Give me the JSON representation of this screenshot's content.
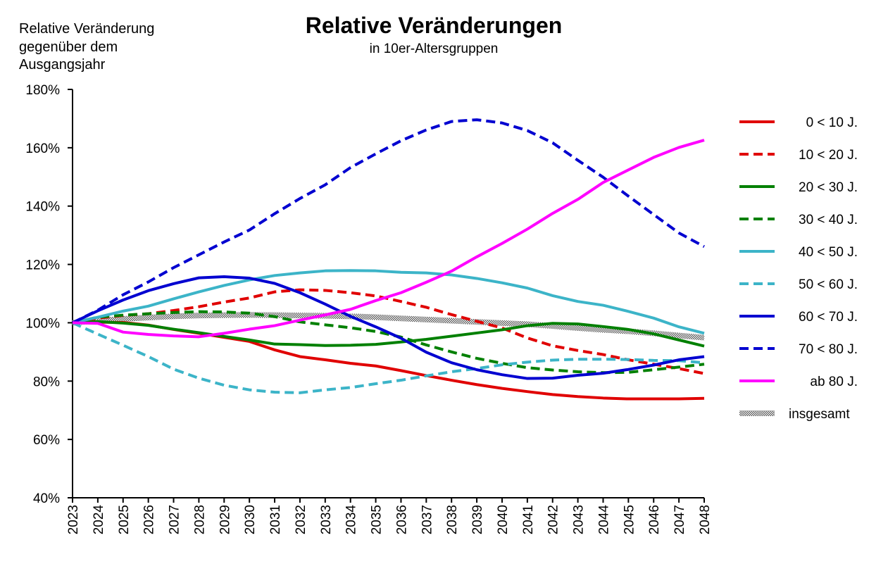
{
  "chart_data": {
    "type": "line",
    "title": "Relative Veränderungen",
    "subtitle": "in 10er-Altersgruppen",
    "ylabel_lines": [
      "Relative Veränderung",
      "gegenüber dem",
      "Ausgangsjahr"
    ],
    "xlabel": "",
    "ylim": [
      40,
      180
    ],
    "y_ticks": [
      40,
      60,
      80,
      100,
      120,
      140,
      160,
      180
    ],
    "y_tick_labels": [
      "40%",
      "60%",
      "80%",
      "100%",
      "120%",
      "140%",
      "160%",
      "180%"
    ],
    "x": [
      2023,
      2024,
      2025,
      2026,
      2027,
      2028,
      2029,
      2030,
      2031,
      2032,
      2033,
      2034,
      2035,
      2036,
      2037,
      2038,
      2039,
      2040,
      2041,
      2042,
      2043,
      2044,
      2045,
      2046,
      2047,
      2048
    ],
    "x_tick_labels": [
      "2023",
      "2024",
      "2025",
      "2026",
      "2027",
      "2028",
      "2029",
      "2030",
      "2031",
      "2032",
      "2033",
      "2034",
      "2035",
      "2036",
      "2037",
      "2038",
      "2039",
      "2040",
      "2041",
      "2042",
      "2043",
      "2044",
      "2045",
      "2046",
      "2047",
      "2048"
    ],
    "grid": false,
    "legend_position": "right",
    "series": [
      {
        "name": "0 <  10  J.",
        "color": "#e00000",
        "dash": false,
        "values": [
          100,
          100.2,
          100.1,
          99.2,
          97.7,
          96.4,
          95,
          93.6,
          90.7,
          88.4,
          87.3,
          86.1,
          85.2,
          83.6,
          81.9,
          80.3,
          78.8,
          77.5,
          76.4,
          75.4,
          74.7,
          74.2,
          73.9,
          73.9,
          73.9,
          74.1
        ]
      },
      {
        "name": "10 <  20  J.",
        "color": "#e00000",
        "dash": true,
        "values": [
          100,
          101.6,
          102.5,
          103.1,
          104.2,
          105.5,
          107.1,
          108.5,
          110.6,
          111.3,
          111.1,
          110.3,
          109.2,
          107.3,
          105.3,
          102.8,
          100.5,
          98.2,
          94.8,
          92.1,
          90.5,
          89.1,
          87.3,
          85.8,
          84.3,
          82.6
        ]
      },
      {
        "name": "20 <  30  J.",
        "color": "#008000",
        "dash": false,
        "values": [
          100,
          100.4,
          99.9,
          99.1,
          97.8,
          96.6,
          95.3,
          94.1,
          92.7,
          92.5,
          92.2,
          92.3,
          92.6,
          93.4,
          94.3,
          95.4,
          96.5,
          97.6,
          99,
          99.8,
          99.6,
          98.7,
          97.7,
          96.2,
          94.1,
          92
        ]
      },
      {
        "name": "30 <  40  J.",
        "color": "#008000",
        "dash": true,
        "values": [
          100,
          101.9,
          102.6,
          103.1,
          103.5,
          103.8,
          103.7,
          103.3,
          102.1,
          100.3,
          99.3,
          98.3,
          97,
          95.1,
          92.4,
          90,
          87.8,
          86.1,
          84.6,
          83.8,
          83.2,
          82.9,
          83,
          83.9,
          84.8,
          85.8
        ]
      },
      {
        "name": "40 <  50  J.",
        "color": "#3cb4c8",
        "dash": false,
        "values": [
          100,
          101.9,
          104,
          105.7,
          108.2,
          110.6,
          112.8,
          114.7,
          116.2,
          117.1,
          117.8,
          117.9,
          117.8,
          117.3,
          117.1,
          116.4,
          115.2,
          113.7,
          111.9,
          109.3,
          107.3,
          106,
          103.9,
          101.6,
          98.6,
          96.4
        ]
      },
      {
        "name": "50 <  60  J.",
        "color": "#3cb4c8",
        "dash": true,
        "values": [
          100,
          96.1,
          92.3,
          88.4,
          84.1,
          81,
          78.6,
          77,
          76.2,
          76,
          77,
          77.8,
          79.1,
          80.3,
          81.8,
          83.2,
          84.3,
          85.6,
          86.5,
          87.2,
          87.5,
          87.5,
          87.4,
          87.1,
          87,
          86.3
        ]
      },
      {
        "name": "60 <  70  J.",
        "color": "#0000d0",
        "dash": false,
        "values": [
          100,
          104.1,
          107.8,
          111,
          113.4,
          115.4,
          115.8,
          115.3,
          113.5,
          110.3,
          106.4,
          102.2,
          98.6,
          94.7,
          89.9,
          86.3,
          83.9,
          82.2,
          80.9,
          81,
          82,
          82.7,
          84,
          85.5,
          87.3,
          88.4
        ]
      },
      {
        "name": "70 <  80  J.",
        "color": "#0000d0",
        "dash": true,
        "values": [
          100,
          104.3,
          109.6,
          114,
          118.9,
          123.3,
          127.7,
          131.8,
          137.4,
          142.6,
          147.3,
          153.2,
          157.9,
          162.4,
          166.1,
          169,
          169.6,
          168.5,
          165.9,
          161.7,
          155.7,
          149.9,
          143.4,
          137.1,
          130.8,
          126.1
        ]
      },
      {
        "name": "ab 80  J.",
        "color": "#ff00ff",
        "dash": false,
        "values": [
          100,
          99.8,
          96.8,
          96,
          95.5,
          95.2,
          96.4,
          97.8,
          99,
          100.9,
          102.7,
          104.6,
          107.6,
          110.3,
          113.9,
          117.7,
          122.6,
          127.2,
          132.1,
          137.5,
          142.3,
          148.1,
          152.4,
          156.7,
          160.1,
          162.6
        ]
      },
      {
        "name": "insgesamt",
        "color": "#a0a0a0",
        "dash": false,
        "hatched": true,
        "values": [
          100,
          100.7,
          101.3,
          101.8,
          102.2,
          102.5,
          102.6,
          102.7,
          102.6,
          102.5,
          102.4,
          102.2,
          101.9,
          101.5,
          101.1,
          100.7,
          100.3,
          99.9,
          99.5,
          98.9,
          98.2,
          97.6,
          97.1,
          96.4,
          95.6,
          94.9
        ]
      }
    ]
  }
}
